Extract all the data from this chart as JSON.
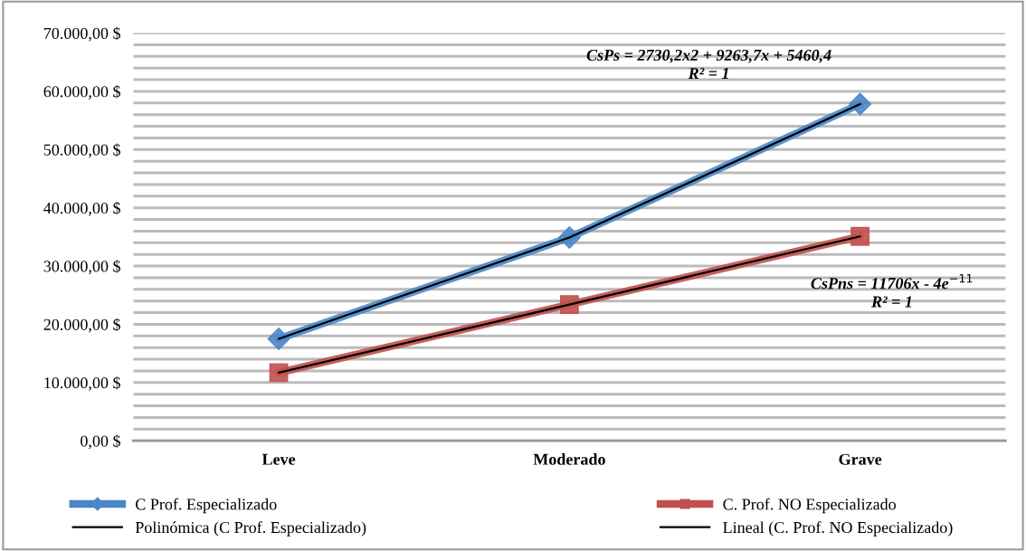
{
  "chart_data": {
    "type": "line",
    "categories": [
      "Leve",
      "Moderado",
      "Grave"
    ],
    "series": [
      {
        "name": "C Prof. Especializado",
        "color": "#4a86c8",
        "values": [
          17500,
          34900,
          57800
        ],
        "marker": "diamond"
      },
      {
        "name": "C. Prof. NO Especializado",
        "color": "#c0504d",
        "values": [
          11700,
          23400,
          35100
        ],
        "marker": "square"
      },
      {
        "name": "Polinómica (C Prof. Especializado)",
        "color": "#000000",
        "values": [
          17500,
          34900,
          57800
        ],
        "marker": "none"
      },
      {
        "name": "Lineal (C. Prof. NO Especializado)",
        "color": "#000000",
        "values": [
          11700,
          23400,
          35100
        ],
        "marker": "none"
      }
    ],
    "ylim": [
      0,
      70000
    ],
    "yticks": [
      {
        "value": 0,
        "label": "0,00 $"
      },
      {
        "value": 2000,
        "label": null
      },
      {
        "value": 4000,
        "label": null
      },
      {
        "value": 6000,
        "label": null
      },
      {
        "value": 8000,
        "label": null
      },
      {
        "value": 10000,
        "label": "10.000,00 $"
      },
      {
        "value": 12000,
        "label": null
      },
      {
        "value": 14000,
        "label": null
      },
      {
        "value": 16000,
        "label": null
      },
      {
        "value": 18000,
        "label": null
      },
      {
        "value": 20000,
        "label": "20.000,00 $"
      },
      {
        "value": 22000,
        "label": null
      },
      {
        "value": 24000,
        "label": null
      },
      {
        "value": 26000,
        "label": null
      },
      {
        "value": 28000,
        "label": null
      },
      {
        "value": 30000,
        "label": "30.000,00 $"
      },
      {
        "value": 32000,
        "label": null
      },
      {
        "value": 34000,
        "label": null
      },
      {
        "value": 36000,
        "label": null
      },
      {
        "value": 38000,
        "label": null
      },
      {
        "value": 40000,
        "label": "40.000,00 $"
      },
      {
        "value": 42000,
        "label": null
      },
      {
        "value": 44000,
        "label": null
      },
      {
        "value": 46000,
        "label": null
      },
      {
        "value": 48000,
        "label": null
      },
      {
        "value": 50000,
        "label": "50.000,00 $"
      },
      {
        "value": 52000,
        "label": null
      },
      {
        "value": 54000,
        "label": null
      },
      {
        "value": 56000,
        "label": null
      },
      {
        "value": 58000,
        "label": null
      },
      {
        "value": 60000,
        "label": "60.000,00 $"
      },
      {
        "value": 62000,
        "label": null
      },
      {
        "value": 64000,
        "label": null
      },
      {
        "value": 66000,
        "label": null
      },
      {
        "value": 68000,
        "label": null
      },
      {
        "value": 70000,
        "label": "70.000,00 $"
      }
    ],
    "grid": "y",
    "legend": "bottom",
    "annotations": [
      "CsPs = 2730,2x2 + 9263,7x + 5460,4\nR² = 1",
      "CsPns = 11706x - 4e$^{−11}$\nR² = 1"
    ]
  }
}
